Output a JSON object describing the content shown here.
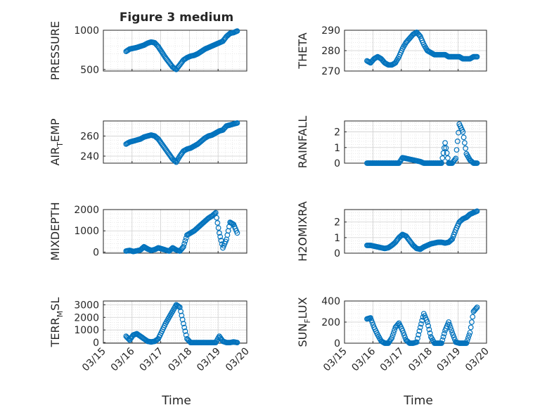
{
  "chart_data": [
    {
      "type": "scatter",
      "title": "Figure 3 medium",
      "xlabel": "",
      "ylabel": "PRESSURE",
      "xlim": [
        "03/15",
        "03/20"
      ],
      "ylim": [
        480,
        1000
      ],
      "yticks": [
        500,
        1000
      ],
      "xticks": [
        "03/15",
        "03/16",
        "03/17",
        "03/18",
        "03/19",
        "03/20"
      ],
      "grid": true,
      "x": [
        "03/15 19:00",
        "03/15 22:00",
        "03/16 01:00",
        "03/16 04:00",
        "03/16 07:00",
        "03/16 10:00",
        "03/16 13:00",
        "03/16 16:00",
        "03/16 19:00",
        "03/16 22:00",
        "03/17 01:00",
        "03/17 04:00",
        "03/17 07:00",
        "03/17 10:00",
        "03/17 13:00",
        "03/17 16:00",
        "03/17 19:00",
        "03/17 22:00",
        "03/18 01:00",
        "03/18 04:00",
        "03/18 07:00",
        "03/18 10:00",
        "03/18 13:00",
        "03/18 16:00",
        "03/18 19:00",
        "03/18 22:00",
        "03/19 01:00",
        "03/19 04:00",
        "03/19 07:00",
        "03/19 10:00",
        "03/19 13:00",
        "03/19 16:00"
      ],
      "values": [
        730,
        760,
        770,
        780,
        795,
        810,
        835,
        850,
        840,
        790,
        720,
        650,
        590,
        530,
        500,
        560,
        620,
        650,
        670,
        680,
        700,
        730,
        760,
        780,
        800,
        820,
        840,
        860,
        920,
        960,
        970,
        990
      ]
    },
    {
      "type": "scatter",
      "title": "",
      "xlabel": "",
      "ylabel": "THETA",
      "xlim": [
        "03/15",
        "03/20"
      ],
      "ylim": [
        270,
        290
      ],
      "yticks": [
        270,
        280,
        290
      ],
      "xticks": [
        "03/15",
        "03/16",
        "03/17",
        "03/18",
        "03/19",
        "03/20"
      ],
      "grid": true,
      "x": [
        "03/15 19:00",
        "03/15 22:00",
        "03/16 01:00",
        "03/16 04:00",
        "03/16 07:00",
        "03/16 10:00",
        "03/16 13:00",
        "03/16 16:00",
        "03/16 19:00",
        "03/16 22:00",
        "03/17 01:00",
        "03/17 04:00",
        "03/17 07:00",
        "03/17 10:00",
        "03/17 13:00",
        "03/17 16:00",
        "03/17 19:00",
        "03/17 22:00",
        "03/18 01:00",
        "03/18 04:00",
        "03/18 07:00",
        "03/18 10:00",
        "03/18 13:00",
        "03/18 16:00",
        "03/18 19:00",
        "03/18 22:00",
        "03/19 01:00",
        "03/19 04:00",
        "03/19 07:00",
        "03/19 10:00",
        "03/19 13:00",
        "03/19 16:00"
      ],
      "values": [
        275,
        274,
        276,
        277,
        276,
        274,
        273,
        273,
        274,
        277,
        281,
        284,
        286,
        288,
        289,
        287,
        283,
        280,
        279,
        278,
        278,
        278,
        278,
        277,
        277,
        277,
        277,
        276,
        276,
        276,
        277,
        277
      ]
    },
    {
      "type": "scatter",
      "title": "",
      "xlabel": "",
      "ylabel": "AIR_TEMP",
      "xlim": [
        "03/15",
        "03/20"
      ],
      "ylim": [
        233,
        275
      ],
      "yticks": [
        240,
        260
      ],
      "xticks": [
        "03/15",
        "03/16",
        "03/17",
        "03/18",
        "03/19",
        "03/20"
      ],
      "grid": true,
      "x": [
        "03/15 19:00",
        "03/15 22:00",
        "03/16 01:00",
        "03/16 04:00",
        "03/16 07:00",
        "03/16 10:00",
        "03/16 13:00",
        "03/16 16:00",
        "03/16 19:00",
        "03/16 22:00",
        "03/17 01:00",
        "03/17 04:00",
        "03/17 07:00",
        "03/17 10:00",
        "03/17 13:00",
        "03/17 16:00",
        "03/17 19:00",
        "03/17 22:00",
        "03/18 01:00",
        "03/18 04:00",
        "03/18 07:00",
        "03/18 10:00",
        "03/18 13:00",
        "03/18 16:00",
        "03/18 19:00",
        "03/18 22:00",
        "03/19 01:00",
        "03/19 04:00",
        "03/19 07:00",
        "03/19 10:00",
        "03/19 13:00",
        "03/19 16:00"
      ],
      "values": [
        252,
        254,
        255,
        256,
        257,
        259,
        260,
        261,
        260,
        257,
        252,
        247,
        242,
        237,
        234,
        240,
        245,
        247,
        248,
        250,
        252,
        255,
        258,
        260,
        261,
        263,
        265,
        266,
        270,
        271,
        272,
        273
      ]
    },
    {
      "type": "scatter",
      "title": "",
      "xlabel": "",
      "ylabel": "RAINFALL",
      "xlim": [
        "03/15",
        "03/20"
      ],
      "ylim": [
        0,
        2.7
      ],
      "yticks": [
        0,
        1,
        2
      ],
      "xticks": [
        "03/15",
        "03/16",
        "03/17",
        "03/18",
        "03/19",
        "03/20"
      ],
      "grid": true,
      "x": [
        "03/15 19:00",
        "03/15 22:00",
        "03/16 01:00",
        "03/16 04:00",
        "03/16 07:00",
        "03/16 10:00",
        "03/16 13:00",
        "03/16 16:00",
        "03/16 19:00",
        "03/16 22:00",
        "03/17 01:00",
        "03/17 04:00",
        "03/17 07:00",
        "03/17 10:00",
        "03/17 13:00",
        "03/17 16:00",
        "03/17 19:00",
        "03/17 22:00",
        "03/18 01:00",
        "03/18 04:00",
        "03/18 07:00",
        "03/18 10:00",
        "03/18 13:00",
        "03/18 16:00",
        "03/18 19:00",
        "03/18 22:00",
        "03/19 01:00",
        "03/19 04:00",
        "03/19 07:00",
        "03/19 10:00",
        "03/19 13:00",
        "03/19 16:00"
      ],
      "values": [
        0,
        0,
        0,
        0,
        0,
        0,
        0,
        0,
        0,
        0,
        0.35,
        0.3,
        0.25,
        0.2,
        0.15,
        0.1,
        0,
        0,
        0,
        0,
        0,
        0,
        1.3,
        0,
        0,
        0.3,
        2.5,
        2.0,
        0.6,
        0.2,
        0,
        0
      ]
    },
    {
      "type": "scatter",
      "title": "",
      "xlabel": "",
      "ylabel": "MIXDEPTH",
      "xlim": [
        "03/15",
        "03/20"
      ],
      "ylim": [
        -50,
        2000
      ],
      "yticks": [
        0,
        1000,
        2000
      ],
      "xticks": [
        "03/15",
        "03/16",
        "03/17",
        "03/18",
        "03/19",
        "03/20"
      ],
      "grid": true,
      "x": [
        "03/15 19:00",
        "03/15 22:00",
        "03/16 01:00",
        "03/16 04:00",
        "03/16 07:00",
        "03/16 10:00",
        "03/16 13:00",
        "03/16 16:00",
        "03/16 19:00",
        "03/16 22:00",
        "03/17 01:00",
        "03/17 04:00",
        "03/17 07:00",
        "03/17 10:00",
        "03/17 13:00",
        "03/17 16:00",
        "03/17 19:00",
        "03/17 22:00",
        "03/18 01:00",
        "03/18 04:00",
        "03/18 07:00",
        "03/18 10:00",
        "03/18 13:00",
        "03/18 16:00",
        "03/18 19:00",
        "03/18 22:00",
        "03/19 01:00",
        "03/19 04:00",
        "03/19 07:00",
        "03/19 10:00",
        "03/19 13:00",
        "03/19 16:00"
      ],
      "values": [
        50,
        80,
        30,
        60,
        100,
        250,
        150,
        80,
        120,
        200,
        150,
        100,
        50,
        200,
        100,
        50,
        250,
        800,
        900,
        1000,
        1150,
        1300,
        1450,
        1600,
        1700,
        1850,
        900,
        200,
        600,
        1400,
        1300,
        900
      ]
    },
    {
      "type": "scatter",
      "title": "",
      "xlabel": "",
      "ylabel": "H2OMIXRA",
      "xlim": [
        "03/15",
        "03/20"
      ],
      "ylim": [
        0,
        2.8
      ],
      "yticks": [
        0,
        1,
        2
      ],
      "xticks": [
        "03/15",
        "03/16",
        "03/17",
        "03/18",
        "03/19",
        "03/20"
      ],
      "grid": true,
      "x": [
        "03/15 19:00",
        "03/15 22:00",
        "03/16 01:00",
        "03/16 04:00",
        "03/16 07:00",
        "03/16 10:00",
        "03/16 13:00",
        "03/16 16:00",
        "03/16 19:00",
        "03/16 22:00",
        "03/17 01:00",
        "03/17 04:00",
        "03/17 07:00",
        "03/17 10:00",
        "03/17 13:00",
        "03/17 16:00",
        "03/17 19:00",
        "03/17 22:00",
        "03/18 01:00",
        "03/18 04:00",
        "03/18 07:00",
        "03/18 10:00",
        "03/18 13:00",
        "03/18 16:00",
        "03/18 19:00",
        "03/18 22:00",
        "03/19 01:00",
        "03/19 04:00",
        "03/19 07:00",
        "03/19 10:00",
        "03/19 13:00",
        "03/19 16:00"
      ],
      "values": [
        0.5,
        0.5,
        0.45,
        0.4,
        0.35,
        0.3,
        0.35,
        0.5,
        0.7,
        1.0,
        1.2,
        1.1,
        0.8,
        0.5,
        0.3,
        0.25,
        0.4,
        0.5,
        0.6,
        0.65,
        0.7,
        0.7,
        0.65,
        0.7,
        0.9,
        1.5,
        2.0,
        2.2,
        2.3,
        2.5,
        2.6,
        2.7
      ]
    },
    {
      "type": "scatter",
      "title": "",
      "xlabel": "",
      "ylabel": "TERR_MSL",
      "xlim": [
        "03/15",
        "03/20"
      ],
      "ylim": [
        -50,
        3300
      ],
      "yticks": [
        0,
        1000,
        2000,
        3000
      ],
      "xticks": [
        "03/15",
        "03/16",
        "03/17",
        "03/18",
        "03/19",
        "03/20"
      ],
      "grid": true,
      "x": [
        "03/15 19:00",
        "03/15 22:00",
        "03/16 01:00",
        "03/16 04:00",
        "03/16 07:00",
        "03/16 10:00",
        "03/16 13:00",
        "03/16 16:00",
        "03/16 19:00",
        "03/16 22:00",
        "03/17 01:00",
        "03/17 04:00",
        "03/17 07:00",
        "03/17 10:00",
        "03/17 13:00",
        "03/17 16:00",
        "03/17 19:00",
        "03/17 22:00",
        "03/18 01:00",
        "03/18 04:00",
        "03/18 07:00",
        "03/18 10:00",
        "03/18 13:00",
        "03/18 16:00",
        "03/18 19:00",
        "03/18 22:00",
        "03/19 01:00",
        "03/19 04:00",
        "03/19 07:00",
        "03/19 10:00",
        "03/19 13:00",
        "03/19 16:00"
      ],
      "values": [
        500,
        200,
        600,
        700,
        500,
        300,
        100,
        50,
        100,
        300,
        900,
        1500,
        2000,
        2500,
        3000,
        2800,
        1500,
        300,
        0,
        0,
        0,
        0,
        0,
        0,
        0,
        0,
        500,
        100,
        0,
        0,
        50,
        0
      ]
    },
    {
      "type": "scatter",
      "title": "",
      "xlabel": "",
      "ylabel": "SUN_FLUX",
      "xlim": [
        "03/15",
        "03/20"
      ],
      "ylim": [
        0,
        400
      ],
      "yticks": [
        0,
        200,
        400
      ],
      "xticks": [
        "03/15",
        "03/16",
        "03/17",
        "03/18",
        "03/19",
        "03/20"
      ],
      "grid": true,
      "x": [
        "03/15 19:00",
        "03/15 22:00",
        "03/16 01:00",
        "03/16 04:00",
        "03/16 07:00",
        "03/16 10:00",
        "03/16 13:00",
        "03/16 16:00",
        "03/16 19:00",
        "03/16 22:00",
        "03/17 01:00",
        "03/17 04:00",
        "03/17 07:00",
        "03/17 10:00",
        "03/17 13:00",
        "03/17 16:00",
        "03/17 19:00",
        "03/17 22:00",
        "03/18 01:00",
        "03/18 04:00",
        "03/18 07:00",
        "03/18 10:00",
        "03/18 13:00",
        "03/18 16:00",
        "03/18 19:00",
        "03/18 22:00",
        "03/19 01:00",
        "03/19 04:00",
        "03/19 07:00",
        "03/19 10:00",
        "03/19 13:00",
        "03/19 16:00"
      ],
      "values": [
        230,
        240,
        150,
        80,
        20,
        0,
        0,
        50,
        150,
        190,
        120,
        30,
        0,
        0,
        10,
        150,
        280,
        200,
        60,
        0,
        0,
        0,
        120,
        200,
        100,
        10,
        0,
        0,
        0,
        100,
        300,
        340
      ]
    }
  ],
  "xlabels": {
    "left": "Time",
    "right": "Time"
  },
  "colors": {
    "marker": "#0072BD",
    "axis": "#262626",
    "grid": "#dcdcdc"
  }
}
